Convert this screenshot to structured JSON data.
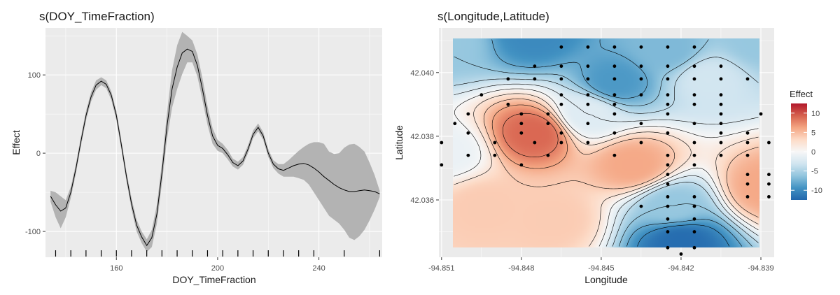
{
  "chart_data": [
    {
      "type": "line",
      "title": "s(DOY_TimeFraction)",
      "xlabel": "DOY_TimeFraction",
      "ylabel": "Effect",
      "xlim": [
        132,
        265
      ],
      "ylim": [
        -133,
        160
      ],
      "x_ticks": [
        160,
        200,
        240
      ],
      "y_ticks": [
        -100,
        0,
        100
      ],
      "grid": true,
      "series": [
        {
          "kind": "line",
          "x": [
            134,
            136,
            138,
            140,
            142,
            144,
            146,
            148,
            150,
            152,
            154,
            156,
            158,
            160,
            162,
            164,
            166,
            168,
            170,
            172,
            174,
            176,
            178,
            180,
            182,
            184,
            186,
            188,
            190,
            192,
            194,
            196,
            198,
            200,
            202,
            204,
            206,
            208,
            210,
            212,
            214,
            216,
            218,
            220,
            222,
            224,
            226,
            228,
            230,
            232,
            234,
            236,
            238,
            240,
            242,
            244,
            246,
            248,
            250,
            252,
            254,
            256,
            258,
            260,
            262,
            264
          ],
          "y": [
            -55,
            -66,
            -74,
            -70,
            -50,
            -20,
            15,
            48,
            72,
            87,
            92,
            88,
            74,
            48,
            10,
            -30,
            -65,
            -92,
            -107,
            -118,
            -108,
            -78,
            -25,
            35,
            82,
            110,
            128,
            133,
            130,
            112,
            82,
            48,
            22,
            10,
            6,
            -2,
            -12,
            -16,
            -10,
            5,
            24,
            33,
            22,
            0,
            -14,
            -20,
            -22,
            -19,
            -16,
            -14,
            -13,
            -15,
            -19,
            -24,
            -30,
            -35,
            -40,
            -44,
            -47,
            -49,
            -49,
            -48,
            -47,
            -48,
            -49,
            -52
          ]
        },
        {
          "kind": "ribbon",
          "x": [
            134,
            136,
            138,
            140,
            142,
            144,
            146,
            148,
            150,
            152,
            154,
            156,
            158,
            160,
            162,
            164,
            166,
            168,
            170,
            172,
            174,
            176,
            178,
            180,
            182,
            184,
            186,
            188,
            190,
            192,
            194,
            196,
            198,
            200,
            202,
            204,
            206,
            208,
            210,
            212,
            214,
            216,
            218,
            220,
            222,
            224,
            226,
            228,
            230,
            232,
            234,
            236,
            238,
            240,
            242,
            244,
            246,
            248,
            250,
            252,
            254,
            256,
            258,
            260,
            262,
            264
          ],
          "upper": [
            -48,
            -50,
            -55,
            -60,
            -43,
            -14,
            21,
            54,
            78,
            93,
            97,
            93,
            79,
            54,
            16,
            -24,
            -58,
            -85,
            -100,
            -110,
            -98,
            -66,
            -12,
            52,
            106,
            138,
            155,
            150,
            144,
            126,
            96,
            60,
            32,
            17,
            12,
            4,
            -7,
            -11,
            -5,
            10,
            29,
            38,
            27,
            5,
            -9,
            -14,
            -14,
            -9,
            -3,
            3,
            8,
            12,
            14,
            14,
            12,
            2,
            -1,
            0,
            7,
            11,
            12,
            8,
            2,
            -12,
            -28,
            -48
          ],
          "lower": [
            -62,
            -82,
            -96,
            -82,
            -57,
            -26,
            9,
            42,
            66,
            81,
            87,
            83,
            68,
            42,
            4,
            -36,
            -72,
            -100,
            -115,
            -126,
            -120,
            -90,
            -38,
            18,
            58,
            82,
            101,
            116,
            116,
            98,
            68,
            36,
            12,
            3,
            0,
            -8,
            -17,
            -21,
            -15,
            0,
            19,
            28,
            17,
            -5,
            -19,
            -26,
            -30,
            -30,
            -30,
            -32,
            -34,
            -40,
            -50,
            -60,
            -70,
            -80,
            -85,
            -90,
            -98,
            -108,
            -111,
            -106,
            -98,
            -86,
            -72,
            -56
          ]
        },
        {
          "kind": "rug",
          "x": [
            136,
            142,
            148,
            154,
            160,
            166,
            172,
            178,
            184,
            190,
            196,
            202,
            208,
            214,
            220,
            226,
            232,
            238,
            250,
            264
          ]
        }
      ]
    },
    {
      "type": "heatmap",
      "title": "s(Longitude,Latitude)",
      "xlabel": "Longitude",
      "ylabel": "Latitude",
      "xlim": [
        -94.8511,
        -94.8385
      ],
      "ylim": [
        42.0342,
        42.0414
      ],
      "x_ticks": [
        "-94.851",
        "-94.848",
        "-94.845",
        "-94.842",
        "-94.839"
      ],
      "y_ticks": [
        "42.036",
        "42.038",
        "42.040"
      ],
      "grid": true,
      "legend": {
        "title": "Effect",
        "position": "right",
        "ticks": [
          10,
          5,
          0,
          -5,
          -10
        ],
        "range": [
          -12.5,
          12.5
        ],
        "colors": [
          "#2166ac",
          "#4393c3",
          "#92c5de",
          "#d1e5f0",
          "#f7f7f7",
          "#fddbc7",
          "#f4a582",
          "#d6604d",
          "#b2182b"
        ]
      },
      "surface": [
        {
          "lon": -94.8475,
          "lat": 42.0381,
          "effect": 9
        },
        {
          "lon": -94.8438,
          "lat": 42.0371,
          "effect": 6
        },
        {
          "lon": -94.8388,
          "lat": 42.0364,
          "effect": 6
        },
        {
          "lon": -94.8494,
          "lat": 42.0358,
          "effect": 4
        },
        {
          "lon": -94.8468,
          "lat": 42.0354,
          "effect": 4
        },
        {
          "lon": -94.8475,
          "lat": 42.0412,
          "effect": -10
        },
        {
          "lon": -94.8445,
          "lat": 42.0397,
          "effect": -9
        },
        {
          "lon": -94.8425,
          "lat": 42.0407,
          "effect": -7
        },
        {
          "lon": -94.841,
          "lat": 42.0398,
          "effect": -3
        },
        {
          "lon": -94.839,
          "lat": 42.041,
          "effect": -6
        },
        {
          "lon": -94.8508,
          "lat": 42.041,
          "effect": -6
        },
        {
          "lon": -94.842,
          "lat": 42.0347,
          "effect": -12
        },
        {
          "lon": -94.8423,
          "lat": 42.0358,
          "effect": -6
        },
        {
          "lon": -94.8508,
          "lat": 42.0375,
          "effect": -1
        },
        {
          "lon": -94.8455,
          "lat": 42.0387,
          "effect": -2
        }
      ],
      "points": [
        [
          -94.8465,
          42.0408
        ],
        [
          -94.8455,
          42.0408
        ],
        [
          -94.8445,
          42.0408
        ],
        [
          -94.8435,
          42.0408
        ],
        [
          -94.8425,
          42.0408
        ],
        [
          -94.8415,
          42.0408
        ],
        [
          -94.8475,
          42.0402
        ],
        [
          -94.8465,
          42.0402
        ],
        [
          -94.8455,
          42.0402
        ],
        [
          -94.8445,
          42.0402
        ],
        [
          -94.8435,
          42.0402
        ],
        [
          -94.8425,
          42.0402
        ],
        [
          -94.8415,
          42.0402
        ],
        [
          -94.8405,
          42.0402
        ],
        [
          -94.8485,
          42.0398
        ],
        [
          -94.8475,
          42.0398
        ],
        [
          -94.8465,
          42.0398
        ],
        [
          -94.8455,
          42.0398
        ],
        [
          -94.8445,
          42.0398
        ],
        [
          -94.8435,
          42.0398
        ],
        [
          -94.8425,
          42.0398
        ],
        [
          -94.8415,
          42.0398
        ],
        [
          -94.8405,
          42.0398
        ],
        [
          -94.8395,
          42.0398
        ],
        [
          -94.8495,
          42.0393
        ],
        [
          -94.8465,
          42.0393
        ],
        [
          -94.8455,
          42.0393
        ],
        [
          -94.8445,
          42.0393
        ],
        [
          -94.8435,
          42.0393
        ],
        [
          -94.8425,
          42.0393
        ],
        [
          -94.8415,
          42.0393
        ],
        [
          -94.8405,
          42.0393
        ],
        [
          -94.8485,
          42.039
        ],
        [
          -94.8465,
          42.039
        ],
        [
          -94.8455,
          42.039
        ],
        [
          -94.8445,
          42.039
        ],
        [
          -94.8425,
          42.039
        ],
        [
          -94.8415,
          42.039
        ],
        [
          -94.8405,
          42.039
        ],
        [
          -94.85,
          42.0387
        ],
        [
          -94.848,
          42.0387
        ],
        [
          -94.847,
          42.0387
        ],
        [
          -94.8445,
          42.0387
        ],
        [
          -94.8425,
          42.0387
        ],
        [
          -94.8405,
          42.0387
        ],
        [
          -94.839,
          42.0387
        ],
        [
          -94.8505,
          42.0384
        ],
        [
          -94.848,
          42.0384
        ],
        [
          -94.847,
          42.0384
        ],
        [
          -94.8455,
          42.0384
        ],
        [
          -94.8435,
          42.0384
        ],
        [
          -94.8415,
          42.0384
        ],
        [
          -94.8405,
          42.0384
        ],
        [
          -94.85,
          42.0381
        ],
        [
          -94.848,
          42.0381
        ],
        [
          -94.8465,
          42.0381
        ],
        [
          -94.8445,
          42.0381
        ],
        [
          -94.8425,
          42.0381
        ],
        [
          -94.8405,
          42.0381
        ],
        [
          -94.8395,
          42.0381
        ],
        [
          -94.851,
          42.0378
        ],
        [
          -94.849,
          42.0378
        ],
        [
          -94.8475,
          42.0378
        ],
        [
          -94.8465,
          42.0378
        ],
        [
          -94.8455,
          42.0378
        ],
        [
          -94.8435,
          42.0378
        ],
        [
          -94.8415,
          42.0378
        ],
        [
          -94.8405,
          42.0378
        ],
        [
          -94.8395,
          42.0378
        ],
        [
          -94.8387,
          42.0378
        ],
        [
          -94.85,
          42.0374
        ],
        [
          -94.849,
          42.0374
        ],
        [
          -94.847,
          42.0374
        ],
        [
          -94.8445,
          42.0374
        ],
        [
          -94.8425,
          42.0374
        ],
        [
          -94.8415,
          42.0374
        ],
        [
          -94.8405,
          42.0374
        ],
        [
          -94.8395,
          42.0374
        ],
        [
          -94.851,
          42.0371
        ],
        [
          -94.848,
          42.0371
        ],
        [
          -94.8425,
          42.0371
        ],
        [
          -94.8415,
          42.0371
        ],
        [
          -94.8425,
          42.0368
        ],
        [
          -94.8395,
          42.0368
        ],
        [
          -94.8387,
          42.0368
        ],
        [
          -94.8425,
          42.0365
        ],
        [
          -94.8395,
          42.0365
        ],
        [
          -94.8387,
          42.0365
        ],
        [
          -94.8425,
          42.0361
        ],
        [
          -94.8415,
          42.0361
        ],
        [
          -94.8395,
          42.0361
        ],
        [
          -94.8387,
          42.0361
        ],
        [
          -94.8435,
          42.0358
        ],
        [
          -94.8425,
          42.0358
        ],
        [
          -94.8415,
          42.0358
        ],
        [
          -94.8425,
          42.0354
        ],
        [
          -94.8415,
          42.0354
        ],
        [
          -94.8425,
          42.035
        ],
        [
          -94.8415,
          42.035
        ],
        [
          -94.8425,
          42.0345
        ],
        [
          -94.8415,
          42.0345
        ],
        [
          -94.842,
          42.0343
        ]
      ]
    }
  ]
}
